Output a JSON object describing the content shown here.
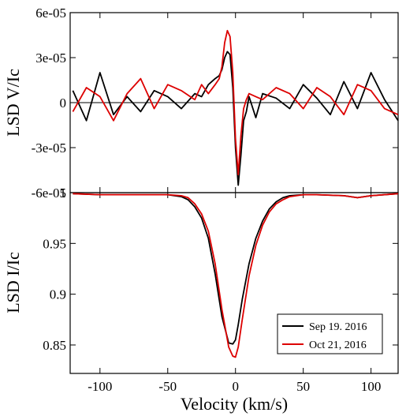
{
  "chart_data": [
    {
      "id": "top",
      "type": "line",
      "ylabel": "LSD V/Ic",
      "xlim": [
        -122,
        120
      ],
      "ylim": [
        -6e-05,
        6e-05
      ],
      "yticks": [
        -6e-05,
        -3e-05,
        0,
        3e-05,
        6e-05
      ],
      "ytick_labels": [
        "-6e-05",
        "-3e-05",
        "0",
        "3e-05",
        "6e-05"
      ],
      "xticks": [
        -100,
        -50,
        0,
        50,
        100
      ],
      "series": [
        {
          "name": "Sep 19. 2016",
          "color": "#000000",
          "x": [
            -120,
            -110,
            -100,
            -90,
            -80,
            -70,
            -60,
            -50,
            -40,
            -30,
            -25,
            -20,
            -15,
            -12,
            -10,
            -8,
            -6,
            -4,
            -2,
            0,
            2,
            4,
            6,
            8,
            10,
            15,
            20,
            30,
            40,
            50,
            60,
            70,
            80,
            90,
            100,
            110,
            120
          ],
          "values": [
            8e-06,
            -1.2e-05,
            2e-05,
            -8e-06,
            4e-06,
            -6e-06,
            8e-06,
            4e-06,
            -4e-06,
            6e-06,
            4e-06,
            1.2e-05,
            1.6e-05,
            1.8e-05,
            2.2e-05,
            3e-05,
            3.4e-05,
            3.2e-05,
            1e-05,
            -3e-05,
            -5.5e-05,
            -3.5e-05,
            -1.2e-05,
            -6e-06,
            4e-06,
            -1e-05,
            6e-06,
            3e-06,
            -4e-06,
            1.2e-05,
            3e-06,
            -8e-06,
            1.4e-05,
            -4e-06,
            2e-05,
            2e-06,
            -1.2e-05
          ]
        },
        {
          "name": "Oct 21, 2016",
          "color": "#dd0000",
          "x": [
            -120,
            -110,
            -100,
            -90,
            -80,
            -70,
            -60,
            -50,
            -40,
            -30,
            -25,
            -20,
            -15,
            -12,
            -10,
            -8,
            -6,
            -4,
            -2,
            0,
            2,
            4,
            6,
            8,
            10,
            15,
            20,
            30,
            40,
            50,
            60,
            70,
            80,
            90,
            100,
            110,
            120
          ],
          "values": [
            -6e-06,
            1e-05,
            4e-06,
            -1.2e-05,
            6e-06,
            1.6e-05,
            -4e-06,
            1.2e-05,
            8e-06,
            2e-06,
            1.2e-05,
            6e-06,
            1.2e-05,
            1.6e-05,
            2.4e-05,
            4e-05,
            4.8e-05,
            4.4e-05,
            2e-05,
            -2.4e-05,
            -4.8e-05,
            -2.2e-05,
            -4e-06,
            2e-06,
            6e-06,
            4e-06,
            2e-06,
            1e-05,
            6e-06,
            -4e-06,
            1e-05,
            4e-06,
            -8e-06,
            1.2e-05,
            8e-06,
            -4e-06,
            -8e-06
          ]
        }
      ]
    },
    {
      "id": "bottom",
      "type": "line",
      "xlabel": "Velocity (km/s)",
      "ylabel": "LSD I/Ic",
      "xlim": [
        -122,
        120
      ],
      "ylim": [
        0.822,
        1.0
      ],
      "yticks": [
        0.85,
        0.9,
        0.95,
        1
      ],
      "ytick_labels": [
        "0.85",
        "0.9",
        "0.95",
        "1"
      ],
      "xticks": [
        -100,
        -50,
        0,
        50,
        100
      ],
      "xtick_labels": [
        "-100",
        "-50",
        "0",
        "50",
        "100"
      ],
      "legend_position": "bottom-right",
      "series": [
        {
          "name": "Sep 19. 2016",
          "color": "#000000",
          "x": [
            -120,
            -100,
            -80,
            -60,
            -50,
            -40,
            -35,
            -30,
            -25,
            -20,
            -15,
            -10,
            -5,
            -2,
            0,
            2,
            5,
            10,
            15,
            20,
            25,
            30,
            35,
            40,
            50,
            60,
            80,
            90,
            100,
            120
          ],
          "values": [
            0.999,
            0.998,
            0.998,
            0.998,
            0.998,
            0.996,
            0.993,
            0.986,
            0.975,
            0.955,
            0.92,
            0.878,
            0.852,
            0.851,
            0.855,
            0.87,
            0.895,
            0.93,
            0.955,
            0.972,
            0.984,
            0.991,
            0.995,
            0.997,
            0.998,
            0.998,
            0.997,
            0.995,
            0.997,
            0.999
          ]
        },
        {
          "name": "Oct 21, 2016",
          "color": "#dd0000",
          "x": [
            -120,
            -100,
            -80,
            -60,
            -50,
            -40,
            -35,
            -30,
            -25,
            -20,
            -15,
            -10,
            -5,
            -2,
            0,
            2,
            5,
            10,
            15,
            20,
            25,
            30,
            35,
            40,
            50,
            60,
            80,
            90,
            100,
            120
          ],
          "values": [
            0.999,
            0.998,
            0.998,
            0.998,
            0.998,
            0.997,
            0.995,
            0.989,
            0.979,
            0.962,
            0.93,
            0.885,
            0.848,
            0.839,
            0.838,
            0.848,
            0.875,
            0.918,
            0.948,
            0.968,
            0.981,
            0.989,
            0.993,
            0.996,
            0.998,
            0.998,
            0.997,
            0.995,
            0.997,
            0.999
          ]
        }
      ]
    }
  ]
}
